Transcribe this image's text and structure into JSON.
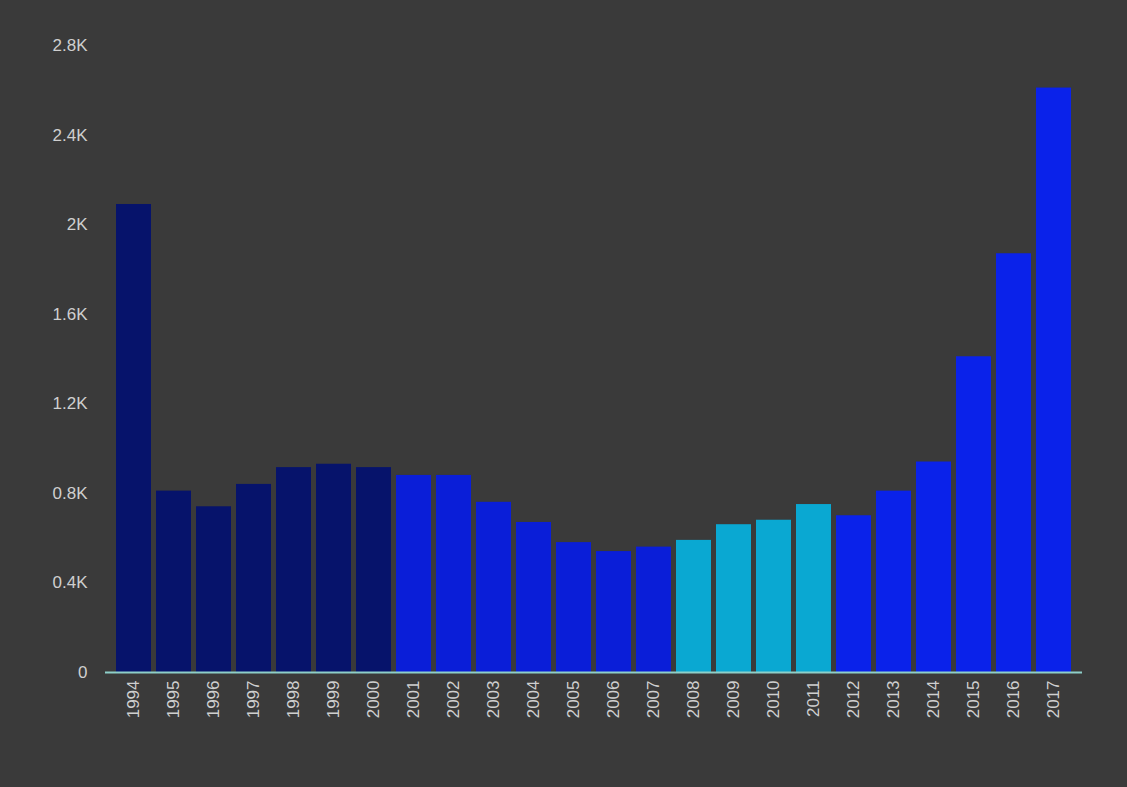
{
  "chart_data": {
    "type": "bar",
    "categories": [
      "1994",
      "1995",
      "1996",
      "1997",
      "1998",
      "1999",
      "2000",
      "2001",
      "2002",
      "2003",
      "2004",
      "2005",
      "2006",
      "2007",
      "2008",
      "2009",
      "2010",
      "2011",
      "2012",
      "2013",
      "2014",
      "2015",
      "2016",
      "2017"
    ],
    "values": [
      2090,
      810,
      740,
      840,
      915,
      930,
      915,
      880,
      880,
      760,
      670,
      580,
      540,
      560,
      590,
      660,
      680,
      750,
      700,
      810,
      940,
      1410,
      1870,
      2610
    ],
    "colors": [
      "#06136b",
      "#06136b",
      "#06136b",
      "#06136b",
      "#06136b",
      "#06136b",
      "#06136b",
      "#0a1ed8",
      "#0a1ed8",
      "#0a1ed8",
      "#0a1ed8",
      "#0a1ed8",
      "#0a1ed8",
      "#0a1ed8",
      "#0aa8d2",
      "#0aa8d2",
      "#0aa8d2",
      "#0aa8d2",
      "#0a22ea",
      "#0a22ea",
      "#0a22ea",
      "#0a22ea",
      "#0a22ea",
      "#0a22ea"
    ],
    "ylim": [
      0,
      2800
    ],
    "yticks": [
      0,
      {
        "value": 400,
        "label": "0.4K"
      },
      {
        "value": 800,
        "label": "0.8K"
      },
      {
        "value": 1200,
        "label": "1.2K"
      },
      {
        "value": 1600,
        "label": "1.6K"
      },
      {
        "value": 2000,
        "label": "2K"
      },
      {
        "value": 2400,
        "label": "2.4K"
      },
      {
        "value": 2800,
        "label": "2.8K"
      }
    ],
    "grid": false
  }
}
